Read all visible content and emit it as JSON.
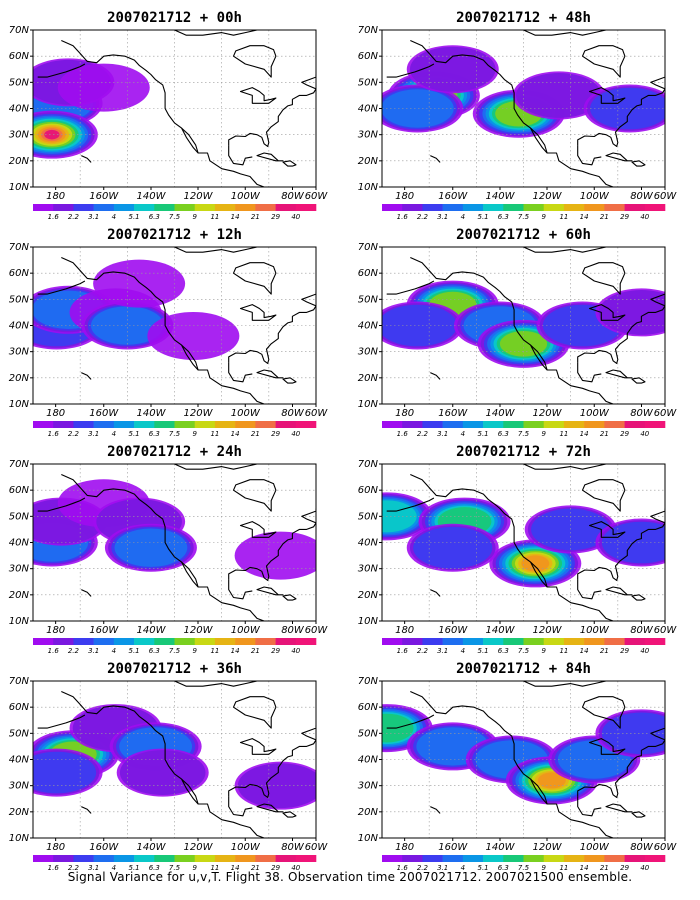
{
  "caption": "Signal Variance for u,v,T. Flight 38. Observation time 2007021712. 2007021500 ensemble.",
  "colorbar": {
    "labels": [
      "1.6",
      "2.2",
      "3.1",
      "4",
      "5.1",
      "6.3",
      "7.5",
      "9",
      "11",
      "14",
      "21",
      "29",
      "40"
    ],
    "colors": [
      "#a00cf0",
      "#7a18e0",
      "#3c3cf0",
      "#1e6ef0",
      "#0a96e6",
      "#0ac8c8",
      "#18c878",
      "#7ad020",
      "#c8d814",
      "#e6b414",
      "#f0961e",
      "#f06e46",
      "#e61478",
      "#f01478"
    ]
  },
  "map_colors": {
    "land": "#000000",
    "grid": "#9a9a9a",
    "frame": "#000000"
  },
  "chart_data": [
    {
      "type": "heatmap",
      "title": "2007021712 + 00h",
      "x_ticks": [
        "180",
        "160W",
        "140W",
        "120W",
        "100W",
        "80W",
        "60W"
      ],
      "y_ticks": [
        "10N",
        "20N",
        "30N",
        "40N",
        "50N",
        "60N",
        "70N"
      ],
      "xlim": [
        "180",
        "60W"
      ],
      "ylim": [
        "10N",
        "70N"
      ],
      "grid": true,
      "blobs": [
        {
          "lon": -178,
          "lat": 38,
          "level": 1
        },
        {
          "lon": -170,
          "lat": 42,
          "level": 3
        },
        {
          "lon": -165,
          "lat": 50,
          "level": 1
        },
        {
          "lon": -150,
          "lat": 48,
          "level": 0
        },
        {
          "lon": -172,
          "lat": 30,
          "level": 12
        }
      ]
    },
    {
      "type": "heatmap",
      "title": "2007021712 + 12h",
      "x_ticks": [
        "180",
        "160W",
        "140W",
        "120W",
        "100W",
        "80W",
        "60W"
      ],
      "y_ticks": [
        "10N",
        "20N",
        "30N",
        "40N",
        "50N",
        "60N",
        "70N"
      ],
      "xlim": [
        "180",
        "60W"
      ],
      "ylim": [
        "10N",
        "70N"
      ],
      "grid": true,
      "blobs": [
        {
          "lon": -170,
          "lat": 40,
          "level": 2
        },
        {
          "lon": -165,
          "lat": 46,
          "level": 3
        },
        {
          "lon": -145,
          "lat": 45,
          "level": 0
        },
        {
          "lon": -140,
          "lat": 40,
          "level": 3
        },
        {
          "lon": -135,
          "lat": 56,
          "level": 0
        },
        {
          "lon": -112,
          "lat": 36,
          "level": 0
        }
      ]
    },
    {
      "type": "heatmap",
      "title": "2007021712 + 24h",
      "x_ticks": [
        "180",
        "160W",
        "140W",
        "120W",
        "100W",
        "80W",
        "60W"
      ],
      "y_ticks": [
        "10N",
        "20N",
        "30N",
        "40N",
        "50N",
        "60N",
        "70N"
      ],
      "xlim": [
        "180",
        "60W"
      ],
      "ylim": [
        "10N",
        "70N"
      ],
      "grid": true,
      "blobs": [
        {
          "lon": -172,
          "lat": 40,
          "level": 3
        },
        {
          "lon": -168,
          "lat": 48,
          "level": 1
        },
        {
          "lon": -150,
          "lat": 55,
          "level": 0
        },
        {
          "lon": -135,
          "lat": 48,
          "level": 1
        },
        {
          "lon": -130,
          "lat": 38,
          "level": 3
        },
        {
          "lon": -75,
          "lat": 35,
          "level": 0
        }
      ]
    },
    {
      "type": "heatmap",
      "title": "2007021712 + 36h",
      "x_ticks": [
        "180",
        "160W",
        "140W",
        "120W",
        "100W",
        "80W",
        "60W"
      ],
      "y_ticks": [
        "10N",
        "20N",
        "30N",
        "40N",
        "50N",
        "60N",
        "70N"
      ],
      "xlim": [
        "180",
        "60W"
      ],
      "ylim": [
        "10N",
        "70N"
      ],
      "grid": true,
      "blobs": [
        {
          "lon": -163,
          "lat": 42,
          "level": 7
        },
        {
          "lon": -170,
          "lat": 35,
          "level": 2
        },
        {
          "lon": -145,
          "lat": 52,
          "level": 1
        },
        {
          "lon": -128,
          "lat": 45,
          "level": 3
        },
        {
          "lon": -125,
          "lat": 35,
          "level": 1
        },
        {
          "lon": -75,
          "lat": 30,
          "level": 1
        }
      ]
    },
    {
      "type": "heatmap",
      "title": "2007021712 + 48h",
      "x_ticks": [
        "180",
        "160W",
        "140W",
        "120W",
        "100W",
        "80W",
        "60W"
      ],
      "y_ticks": [
        "10N",
        "20N",
        "30N",
        "40N",
        "50N",
        "60N",
        "70N"
      ],
      "xlim": [
        "180",
        "60W"
      ],
      "ylim": [
        "10N",
        "70N"
      ],
      "grid": true,
      "blobs": [
        {
          "lon": -158,
          "lat": 45,
          "level": 7
        },
        {
          "lon": -165,
          "lat": 40,
          "level": 3
        },
        {
          "lon": -150,
          "lat": 55,
          "level": 1
        },
        {
          "lon": -122,
          "lat": 38,
          "level": 7
        },
        {
          "lon": -105,
          "lat": 45,
          "level": 1
        },
        {
          "lon": -75,
          "lat": 40,
          "level": 2
        }
      ]
    },
    {
      "type": "heatmap",
      "title": "2007021712 + 60h",
      "x_ticks": [
        "180",
        "160W",
        "140W",
        "120W",
        "100W",
        "80W",
        "60W"
      ],
      "y_ticks": [
        "10N",
        "20N",
        "30N",
        "40N",
        "50N",
        "60N",
        "70N"
      ],
      "xlim": [
        "180",
        "60W"
      ],
      "ylim": [
        "10N",
        "70N"
      ],
      "grid": true,
      "blobs": [
        {
          "lon": -150,
          "lat": 48,
          "level": 7
        },
        {
          "lon": -165,
          "lat": 40,
          "level": 2
        },
        {
          "lon": -130,
          "lat": 40,
          "level": 3
        },
        {
          "lon": -120,
          "lat": 33,
          "level": 7
        },
        {
          "lon": -95,
          "lat": 40,
          "level": 2
        },
        {
          "lon": -70,
          "lat": 45,
          "level": 1
        }
      ]
    },
    {
      "type": "heatmap",
      "title": "2007021712 + 72h",
      "x_ticks": [
        "180",
        "160W",
        "140W",
        "120W",
        "100W",
        "80W",
        "60W"
      ],
      "y_ticks": [
        "10N",
        "20N",
        "30N",
        "40N",
        "50N",
        "60N",
        "70N"
      ],
      "xlim": [
        "180",
        "60W"
      ],
      "ylim": [
        "10N",
        "70N"
      ],
      "grid": true,
      "blobs": [
        {
          "lon": -178,
          "lat": 50,
          "level": 5
        },
        {
          "lon": -145,
          "lat": 48,
          "level": 6
        },
        {
          "lon": -115,
          "lat": 32,
          "level": 10
        },
        {
          "lon": -100,
          "lat": 45,
          "level": 2
        },
        {
          "lon": -150,
          "lat": 38,
          "level": 2
        },
        {
          "lon": -70,
          "lat": 40,
          "level": 2
        }
      ]
    },
    {
      "type": "heatmap",
      "title": "2007021712 + 84h",
      "x_ticks": [
        "180",
        "160W",
        "140W",
        "120W",
        "100W",
        "80W",
        "60W"
      ],
      "y_ticks": [
        "10N",
        "20N",
        "30N",
        "40N",
        "50N",
        "60N",
        "70N"
      ],
      "xlim": [
        "180",
        "60W"
      ],
      "ylim": [
        "10N",
        "70N"
      ],
      "grid": true,
      "blobs": [
        {
          "lon": -178,
          "lat": 52,
          "level": 6
        },
        {
          "lon": -150,
          "lat": 45,
          "level": 3
        },
        {
          "lon": -125,
          "lat": 40,
          "level": 3
        },
        {
          "lon": -108,
          "lat": 32,
          "level": 10
        },
        {
          "lon": -90,
          "lat": 40,
          "level": 3
        },
        {
          "lon": -70,
          "lat": 50,
          "level": 2
        }
      ]
    }
  ]
}
